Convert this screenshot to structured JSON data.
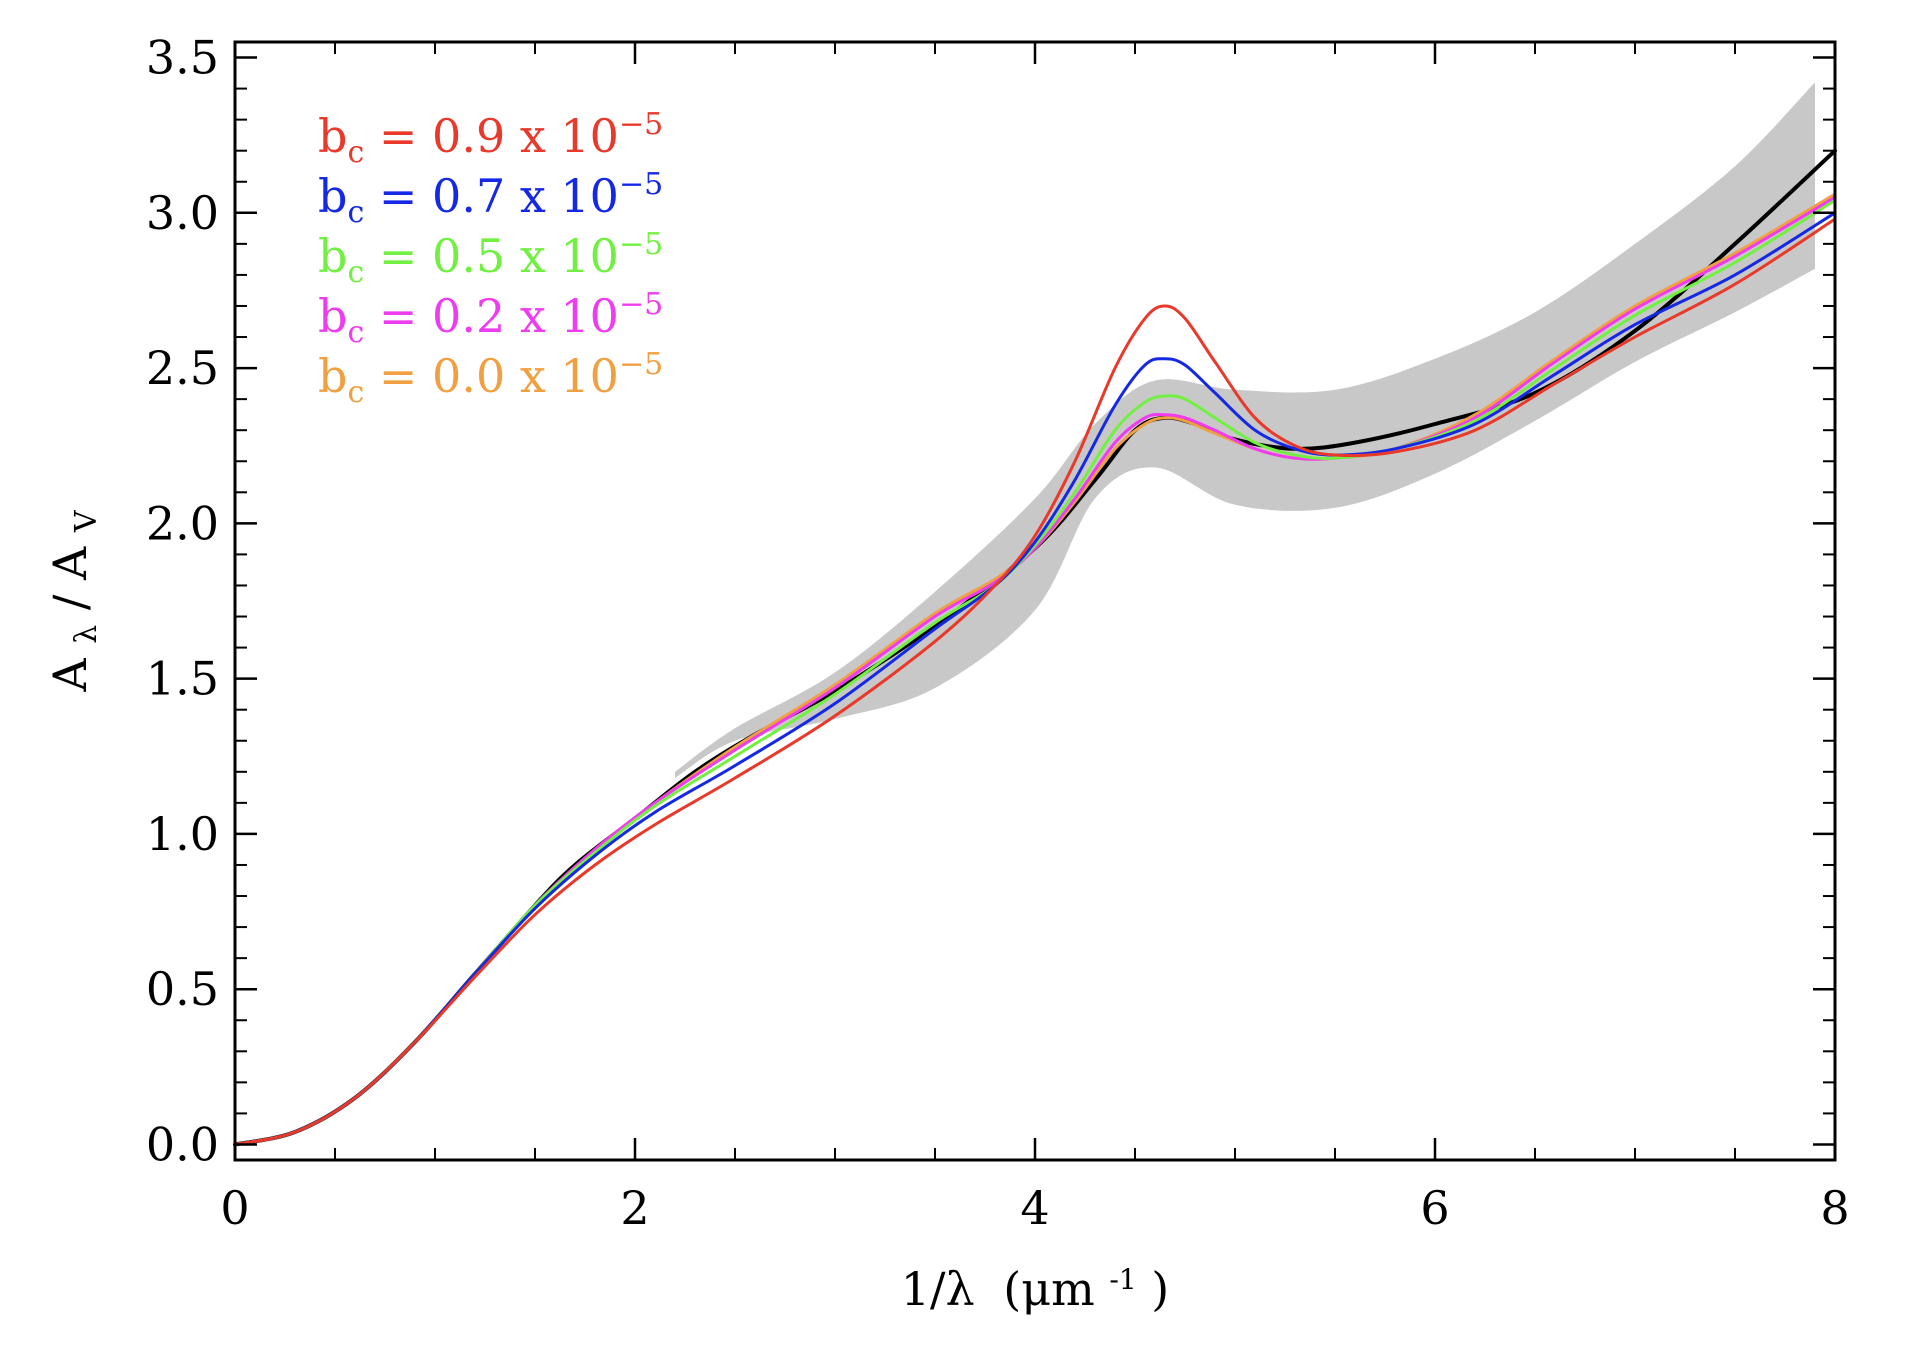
{
  "chart_data": {
    "type": "line",
    "title": "",
    "xlabel": {
      "main": "1/λ",
      "unit": "(μm",
      "unit_exp": "-1",
      "close": ")"
    },
    "ylabel": {
      "num": "A",
      "num_sub": "λ",
      "sep": "/",
      "den": "A",
      "den_sub": "V"
    },
    "xlim": [
      0,
      8
    ],
    "ylim": [
      -0.05,
      3.55
    ],
    "x_ticks": [
      0,
      2,
      4,
      6,
      8
    ],
    "x_tick_labels": [
      "0",
      "2",
      "4",
      "6",
      "8"
    ],
    "y_ticks": [
      0.0,
      0.5,
      1.0,
      1.5,
      2.0,
      2.5,
      3.0,
      3.5
    ],
    "y_tick_labels": [
      "0.0",
      "0.5",
      "1.0",
      "1.5",
      "2.0",
      "2.5",
      "3.0",
      "3.5"
    ],
    "grid": false,
    "legend_position": "top-left",
    "band": {
      "color": "#c8c8c8",
      "x": [
        2.2,
        2.5,
        3.0,
        3.5,
        4.0,
        4.3,
        4.6,
        5.0,
        5.5,
        6.0,
        6.5,
        7.0,
        7.5,
        7.9
      ],
      "upper": [
        1.2,
        1.34,
        1.52,
        1.78,
        2.08,
        2.32,
        2.46,
        2.43,
        2.43,
        2.53,
        2.68,
        2.9,
        3.15,
        3.42
      ],
      "lower": [
        1.18,
        1.3,
        1.37,
        1.47,
        1.72,
        2.08,
        2.18,
        2.06,
        2.05,
        2.16,
        2.33,
        2.52,
        2.68,
        2.82
      ]
    },
    "series": [
      {
        "color": "#000000",
        "x": [
          0,
          0.3,
          0.6,
          0.9,
          1.2,
          1.5,
          1.7,
          2.0,
          2.3,
          2.6,
          3.0,
          3.5,
          4.0,
          4.3,
          4.5,
          4.65,
          4.8,
          5.0,
          5.3,
          5.6,
          6.0,
          6.5,
          7.0,
          7.5,
          8.0
        ],
        "y": [
          0.0,
          0.04,
          0.15,
          0.33,
          0.55,
          0.77,
          0.9,
          1.05,
          1.2,
          1.32,
          1.46,
          1.67,
          1.92,
          2.14,
          2.3,
          2.34,
          2.32,
          2.27,
          2.24,
          2.26,
          2.32,
          2.42,
          2.62,
          2.9,
          3.2
        ]
      },
      {
        "name": "b_c = 0.9 x 10^-5",
        "color": "#e8392a",
        "x": [
          0,
          0.3,
          0.6,
          0.9,
          1.2,
          1.5,
          1.8,
          2.1,
          2.5,
          3.0,
          3.5,
          3.8,
          4.0,
          4.2,
          4.4,
          4.55,
          4.65,
          4.75,
          4.9,
          5.1,
          5.3,
          5.5,
          5.8,
          6.2,
          6.6,
          7.0,
          7.5,
          8.0
        ],
        "y": [
          0.0,
          0.04,
          0.15,
          0.33,
          0.54,
          0.74,
          0.9,
          1.03,
          1.18,
          1.38,
          1.62,
          1.8,
          1.96,
          2.2,
          2.5,
          2.66,
          2.7,
          2.66,
          2.52,
          2.34,
          2.25,
          2.22,
          2.23,
          2.3,
          2.45,
          2.6,
          2.77,
          2.98
        ]
      },
      {
        "name": "b_c = 0.7 x 10^-5",
        "color": "#1428e6",
        "x": [
          0,
          0.3,
          0.6,
          0.9,
          1.2,
          1.5,
          1.8,
          2.1,
          2.5,
          3.0,
          3.5,
          3.8,
          4.0,
          4.2,
          4.4,
          4.55,
          4.65,
          4.75,
          4.9,
          5.1,
          5.3,
          5.5,
          5.8,
          6.2,
          6.6,
          7.0,
          7.5,
          8.0
        ],
        "y": [
          0.0,
          0.04,
          0.15,
          0.33,
          0.55,
          0.76,
          0.93,
          1.07,
          1.22,
          1.42,
          1.66,
          1.8,
          1.94,
          2.14,
          2.38,
          2.51,
          2.53,
          2.51,
          2.42,
          2.3,
          2.24,
          2.22,
          2.24,
          2.32,
          2.48,
          2.64,
          2.8,
          3.0
        ]
      },
      {
        "name": "b_c = 0.5 x 10^-5",
        "color": "#72f042",
        "x": [
          0,
          0.3,
          0.6,
          0.9,
          1.2,
          1.5,
          1.8,
          2.1,
          2.5,
          3.0,
          3.5,
          3.8,
          4.0,
          4.2,
          4.4,
          4.55,
          4.65,
          4.75,
          4.9,
          5.1,
          5.3,
          5.5,
          5.8,
          6.2,
          6.6,
          7.0,
          7.5,
          8.0
        ],
        "y": [
          0.0,
          0.04,
          0.15,
          0.33,
          0.55,
          0.77,
          0.94,
          1.09,
          1.25,
          1.45,
          1.68,
          1.8,
          1.93,
          2.1,
          2.3,
          2.39,
          2.41,
          2.4,
          2.34,
          2.26,
          2.22,
          2.21,
          2.24,
          2.33,
          2.5,
          2.67,
          2.84,
          3.04
        ]
      },
      {
        "name": "b_c = 0.2 x 10^-5",
        "color": "#f03cf0",
        "x": [
          0,
          0.3,
          0.6,
          0.9,
          1.2,
          1.5,
          1.8,
          2.1,
          2.5,
          3.0,
          3.5,
          3.8,
          4.0,
          4.2,
          4.4,
          4.55,
          4.65,
          4.75,
          4.9,
          5.1,
          5.3,
          5.5,
          5.8,
          6.2,
          6.6,
          7.0,
          7.5,
          8.0
        ],
        "y": [
          0.0,
          0.04,
          0.15,
          0.33,
          0.55,
          0.77,
          0.95,
          1.1,
          1.27,
          1.47,
          1.7,
          1.81,
          1.92,
          2.08,
          2.26,
          2.34,
          2.35,
          2.34,
          2.3,
          2.24,
          2.21,
          2.21,
          2.24,
          2.34,
          2.52,
          2.69,
          2.86,
          3.05
        ]
      },
      {
        "name": "b_c = 0.0 x 10^-5",
        "color": "#f0a040",
        "x": [
          0,
          0.3,
          0.6,
          0.9,
          1.2,
          1.5,
          1.8,
          2.1,
          2.5,
          3.0,
          3.5,
          3.8,
          4.0,
          4.2,
          4.4,
          4.55,
          4.65,
          4.75,
          4.9,
          5.1,
          5.3,
          5.5,
          5.8,
          6.2,
          6.6,
          7.0,
          7.5,
          8.0
        ],
        "y": [
          0.0,
          0.04,
          0.15,
          0.33,
          0.55,
          0.77,
          0.95,
          1.1,
          1.28,
          1.48,
          1.71,
          1.82,
          1.92,
          2.07,
          2.24,
          2.32,
          2.34,
          2.33,
          2.29,
          2.24,
          2.21,
          2.21,
          2.24,
          2.35,
          2.53,
          2.7,
          2.87,
          3.06
        ]
      }
    ],
    "legend": [
      {
        "color": "#e8392a",
        "b": "b",
        "sub": "c",
        "eq": " = 0.9 x 10",
        "exp": "−5"
      },
      {
        "color": "#1428e6",
        "b": "b",
        "sub": "c",
        "eq": " = 0.7 x 10",
        "exp": "−5"
      },
      {
        "color": "#72f042",
        "b": "b",
        "sub": "c",
        "eq": " = 0.5 x 10",
        "exp": "−5"
      },
      {
        "color": "#f03cf0",
        "b": "b",
        "sub": "c",
        "eq": " = 0.2 x 10",
        "exp": "−5"
      },
      {
        "color": "#f0a040",
        "b": "b",
        "sub": "c",
        "eq": " = 0.0 x 10",
        "exp": "−5"
      }
    ]
  }
}
